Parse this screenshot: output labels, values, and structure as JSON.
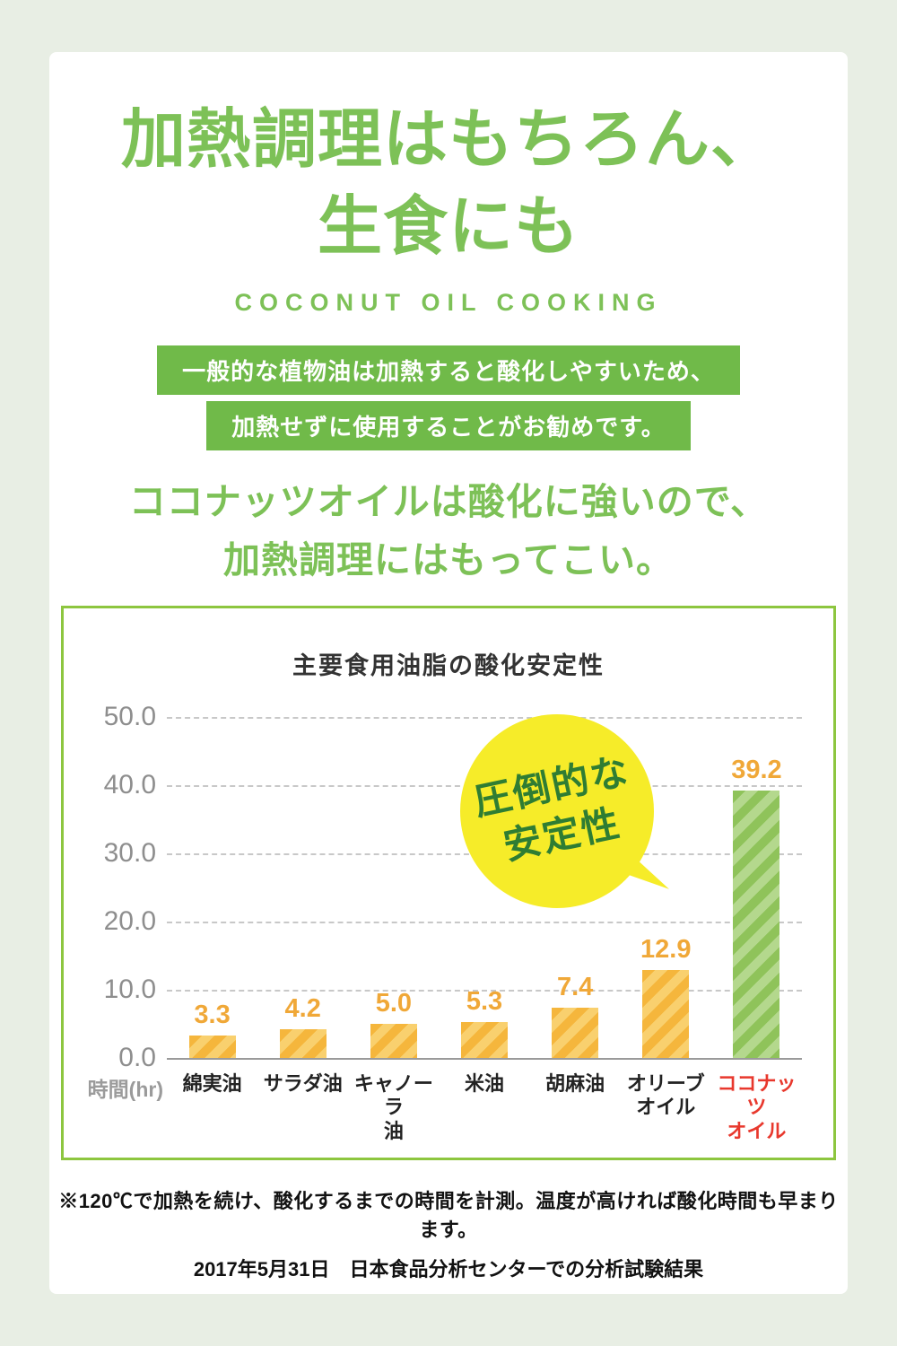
{
  "header": {
    "title_line1": "加熱調理はもちろん、",
    "title_line2": "生食にも",
    "subtitle": "COCONUT OIL COOKING"
  },
  "banners": {
    "line1": "一般的な植物油は加熱すると酸化しやすいため、",
    "line2": "加熱せずに使用することがお勧めです。"
  },
  "lead": {
    "line1": "ココナッツオイルは酸化に強いので、",
    "line2": "加熱調理にはもってこい。"
  },
  "footnotes": {
    "note1": "※120℃で加熱を続け、酸化するまでの時間を計測。温度が高ければ酸化時間も早まります。",
    "note2": "2017年5月31日　日本食品分析センターでの分析試験結果"
  },
  "chart_data": {
    "type": "bar",
    "title": "主要食用油脂の酸化安定性",
    "categories": [
      "綿実油",
      "サラダ油",
      "キャノーラ\n油",
      "米油",
      "胡麻油",
      "オリーブ\nオイル",
      "ココナッツ\nオイル"
    ],
    "values": [
      3.3,
      4.2,
      5.0,
      5.3,
      7.4,
      12.9,
      39.2
    ],
    "xlabel": "時間(hr)",
    "ylabel": "",
    "ylim": [
      0,
      50
    ],
    "yticks": [
      50,
      40,
      30,
      20,
      10,
      0
    ],
    "grid": "horizontal-dashed",
    "legend": "none",
    "highlight_index": 6,
    "annotation": {
      "line1": "圧倒的な",
      "line2": "安定性"
    },
    "colors": {
      "bar": "#f5b63c",
      "bar_stripe": "#f9d06e",
      "highlight_bar": "#8fc35a",
      "highlight_stripe": "#b4d88d",
      "value_label": "#f0a838",
      "category_label": "#222222",
      "highlight_category_label": "#e8382d",
      "badge_bg": "#f6ec29",
      "badge_text": "#2f7d33",
      "accent_green": "#7dc157",
      "banner_green": "#70ba49",
      "chart_border": "#8dc63f"
    }
  }
}
